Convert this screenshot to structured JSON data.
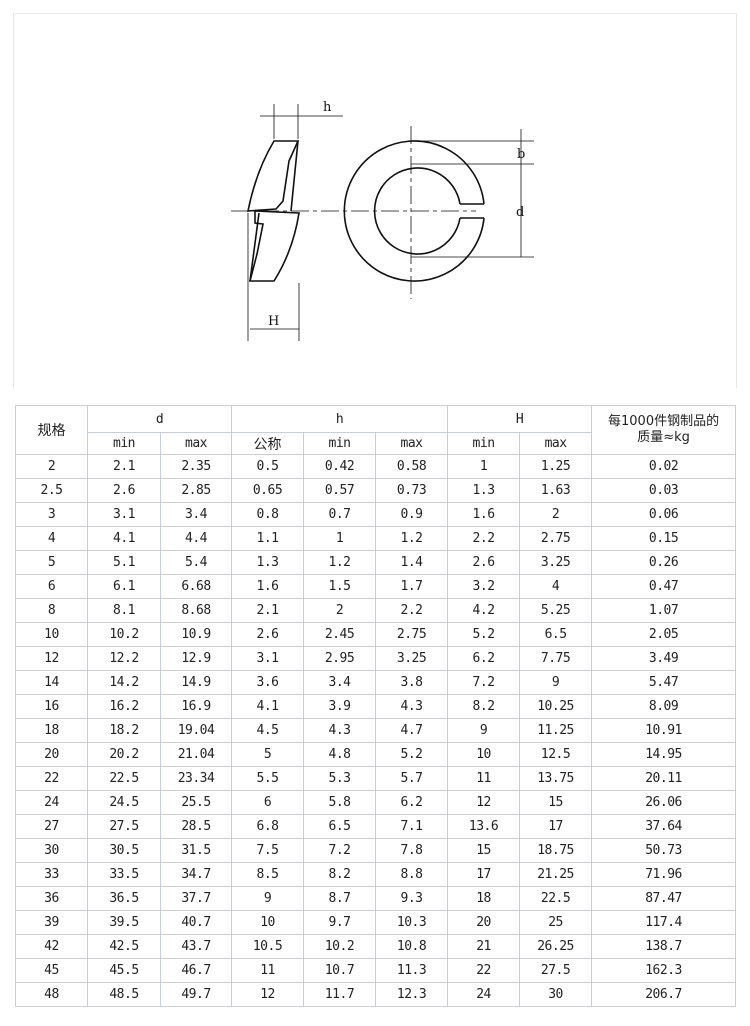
{
  "figure": {
    "labels": {
      "h": "h",
      "b": "b",
      "d": "d",
      "H": "H"
    }
  },
  "table": {
    "header": {
      "spec": "规格",
      "d": "d",
      "h": "h",
      "H": "H",
      "mass_line1": "每1000件钢制品的",
      "mass_line2": "质量≈kg",
      "sub": [
        "min",
        "max",
        "公称",
        "min",
        "max",
        "min",
        "max"
      ]
    },
    "rows": [
      [
        "2",
        "2.1",
        "2.35",
        "0.5",
        "0.42",
        "0.58",
        "1",
        "1.25",
        "0.02"
      ],
      [
        "2.5",
        "2.6",
        "2.85",
        "0.65",
        "0.57",
        "0.73",
        "1.3",
        "1.63",
        "0.03"
      ],
      [
        "3",
        "3.1",
        "3.4",
        "0.8",
        "0.7",
        "0.9",
        "1.6",
        "2",
        "0.06"
      ],
      [
        "4",
        "4.1",
        "4.4",
        "1.1",
        "1",
        "1.2",
        "2.2",
        "2.75",
        "0.15"
      ],
      [
        "5",
        "5.1",
        "5.4",
        "1.3",
        "1.2",
        "1.4",
        "2.6",
        "3.25",
        "0.26"
      ],
      [
        "6",
        "6.1",
        "6.68",
        "1.6",
        "1.5",
        "1.7",
        "3.2",
        "4",
        "0.47"
      ],
      [
        "8",
        "8.1",
        "8.68",
        "2.1",
        "2",
        "2.2",
        "4.2",
        "5.25",
        "1.07"
      ],
      [
        "10",
        "10.2",
        "10.9",
        "2.6",
        "2.45",
        "2.75",
        "5.2",
        "6.5",
        "2.05"
      ],
      [
        "12",
        "12.2",
        "12.9",
        "3.1",
        "2.95",
        "3.25",
        "6.2",
        "7.75",
        "3.49"
      ],
      [
        "14",
        "14.2",
        "14.9",
        "3.6",
        "3.4",
        "3.8",
        "7.2",
        "9",
        "5.47"
      ],
      [
        "16",
        "16.2",
        "16.9",
        "4.1",
        "3.9",
        "4.3",
        "8.2",
        "10.25",
        "8.09"
      ],
      [
        "18",
        "18.2",
        "19.04",
        "4.5",
        "4.3",
        "4.7",
        "9",
        "11.25",
        "10.91"
      ],
      [
        "20",
        "20.2",
        "21.04",
        "5",
        "4.8",
        "5.2",
        "10",
        "12.5",
        "14.95"
      ],
      [
        "22",
        "22.5",
        "23.34",
        "5.5",
        "5.3",
        "5.7",
        "11",
        "13.75",
        "20.11"
      ],
      [
        "24",
        "24.5",
        "25.5",
        "6",
        "5.8",
        "6.2",
        "12",
        "15",
        "26.06"
      ],
      [
        "27",
        "27.5",
        "28.5",
        "6.8",
        "6.5",
        "7.1",
        "13.6",
        "17",
        "37.64"
      ],
      [
        "30",
        "30.5",
        "31.5",
        "7.5",
        "7.2",
        "7.8",
        "15",
        "18.75",
        "50.73"
      ],
      [
        "33",
        "33.5",
        "34.7",
        "8.5",
        "8.2",
        "8.8",
        "17",
        "21.25",
        "71.96"
      ],
      [
        "36",
        "36.5",
        "37.7",
        "9",
        "8.7",
        "9.3",
        "18",
        "22.5",
        "87.47"
      ],
      [
        "39",
        "39.5",
        "40.7",
        "10",
        "9.7",
        "10.3",
        "20",
        "25",
        "117.4"
      ],
      [
        "42",
        "42.5",
        "43.7",
        "10.5",
        "10.2",
        "10.8",
        "21",
        "26.25",
        "138.7"
      ],
      [
        "45",
        "45.5",
        "46.7",
        "11",
        "10.7",
        "11.3",
        "22",
        "27.5",
        "162.3"
      ],
      [
        "48",
        "48.5",
        "49.7",
        "12",
        "11.7",
        "12.3",
        "24",
        "30",
        "206.7"
      ]
    ]
  }
}
